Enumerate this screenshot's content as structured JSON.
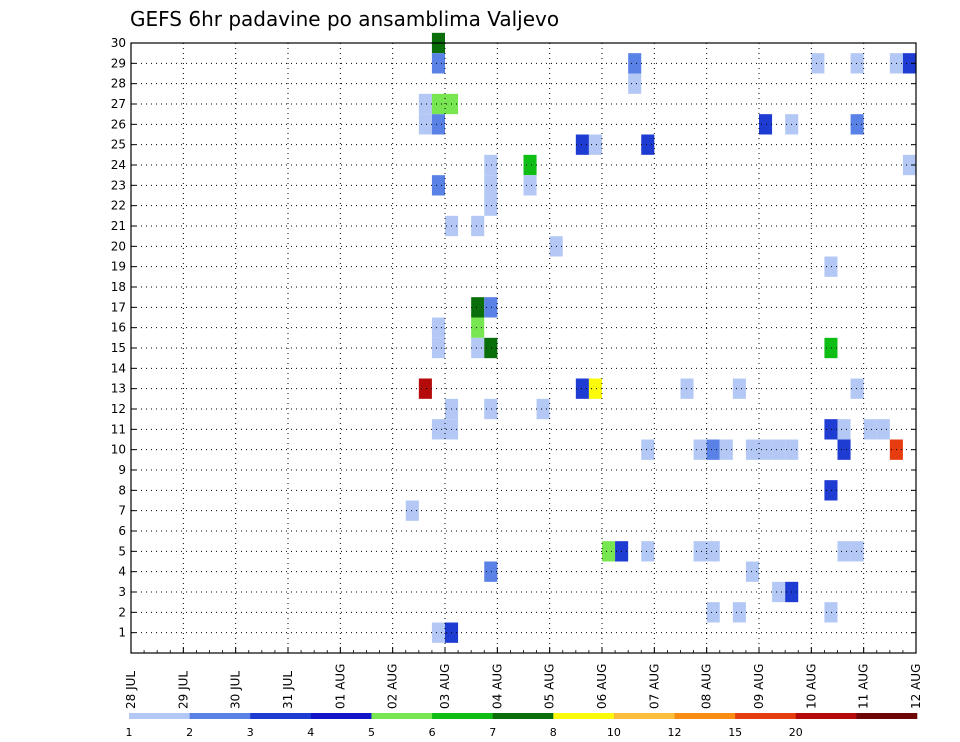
{
  "chart_data": {
    "type": "heatmap",
    "title": "GEFS 6hr padavine po ansamblima Valjevo",
    "xlabel": "",
    "ylabel": "",
    "x_ticks": [
      "28 JUL",
      "29 JUL",
      "30 JUL",
      "31 JUL",
      "01 AUG",
      "02 AUG",
      "03 AUG",
      "04 AUG",
      "05 AUG",
      "06 AUG",
      "07 AUG",
      "08 AUG",
      "09 AUG",
      "10 AUG",
      "11 AUG",
      "12 AUG"
    ],
    "x_range_days": [
      0,
      15
    ],
    "y_ticks": [
      1,
      2,
      3,
      4,
      5,
      6,
      7,
      8,
      9,
      10,
      11,
      12,
      13,
      14,
      15,
      16,
      17,
      18,
      19,
      20,
      21,
      22,
      23,
      24,
      25,
      26,
      27,
      28,
      29,
      30
    ],
    "y_range": [
      0,
      30
    ],
    "time_step_days": 0.25,
    "grid": true,
    "colorbar": {
      "labels": [
        "1",
        "2",
        "3",
        "4",
        "5",
        "6",
        "7",
        "8",
        "10",
        "12",
        "15",
        "20"
      ],
      "colors": [
        "#b4c8f5",
        "#5a82e6",
        "#1e3cd2",
        "#1414c8",
        "#78e650",
        "#0fbe14",
        "#0a6e0a",
        "#fafa0a",
        "#fabe3c",
        "#fa8c14",
        "#e63c0f",
        "#b40a0a",
        "#6e0505"
      ]
    },
    "cells": [
      {
        "member": 30,
        "t": 5.875,
        "level": 6
      },
      {
        "member": 29,
        "t": 5.875,
        "level": 1
      },
      {
        "member": 29,
        "t": 9.625,
        "level": 1
      },
      {
        "member": 29,
        "t": 13.125,
        "level": 0
      },
      {
        "member": 29,
        "t": 13.875,
        "level": 0
      },
      {
        "member": 29,
        "t": 14.625,
        "level": 0
      },
      {
        "member": 29,
        "t": 14.875,
        "level": 2
      },
      {
        "member": 28,
        "t": 9.625,
        "level": 0
      },
      {
        "member": 27,
        "t": 5.625,
        "level": 0
      },
      {
        "member": 27,
        "t": 5.875,
        "level": 4
      },
      {
        "member": 27,
        "t": 6.125,
        "level": 4
      },
      {
        "member": 26,
        "t": 5.625,
        "level": 0
      },
      {
        "member": 26,
        "t": 5.875,
        "level": 1
      },
      {
        "member": 26,
        "t": 12.125,
        "level": 2
      },
      {
        "member": 26,
        "t": 12.625,
        "level": 0
      },
      {
        "member": 26,
        "t": 13.875,
        "level": 1
      },
      {
        "member": 25,
        "t": 8.625,
        "level": 2
      },
      {
        "member": 25,
        "t": 8.875,
        "level": 0
      },
      {
        "member": 25,
        "t": 9.875,
        "level": 2
      },
      {
        "member": 24,
        "t": 6.875,
        "level": 0
      },
      {
        "member": 24,
        "t": 7.625,
        "level": 5
      },
      {
        "member": 24,
        "t": 14.875,
        "level": 0
      },
      {
        "member": 23,
        "t": 5.875,
        "level": 1
      },
      {
        "member": 23,
        "t": 6.875,
        "level": 0
      },
      {
        "member": 23,
        "t": 7.625,
        "level": 0
      },
      {
        "member": 22,
        "t": 6.875,
        "level": 0
      },
      {
        "member": 21,
        "t": 6.125,
        "level": 0
      },
      {
        "member": 21,
        "t": 6.625,
        "level": 0
      },
      {
        "member": 20,
        "t": 8.125,
        "level": 0
      },
      {
        "member": 19,
        "t": 13.375,
        "level": 0
      },
      {
        "member": 17,
        "t": 6.625,
        "level": 6
      },
      {
        "member": 17,
        "t": 6.875,
        "level": 1
      },
      {
        "member": 16,
        "t": 6.625,
        "level": 4
      },
      {
        "member": 16,
        "t": 5.875,
        "level": 0
      },
      {
        "member": 15,
        "t": 5.875,
        "level": 0
      },
      {
        "member": 15,
        "t": 6.625,
        "level": 0
      },
      {
        "member": 15,
        "t": 6.875,
        "level": 6
      },
      {
        "member": 15,
        "t": 13.375,
        "level": 5
      },
      {
        "member": 13,
        "t": 5.625,
        "level": 11
      },
      {
        "member": 13,
        "t": 8.625,
        "level": 2
      },
      {
        "member": 13,
        "t": 8.875,
        "level": 7
      },
      {
        "member": 13,
        "t": 10.625,
        "level": 0
      },
      {
        "member": 13,
        "t": 11.625,
        "level": 0
      },
      {
        "member": 13,
        "t": 13.875,
        "level": 0
      },
      {
        "member": 12,
        "t": 6.125,
        "level": 0
      },
      {
        "member": 12,
        "t": 6.875,
        "level": 0
      },
      {
        "member": 12,
        "t": 7.875,
        "level": 0
      },
      {
        "member": 11,
        "t": 5.875,
        "level": 0
      },
      {
        "member": 11,
        "t": 6.125,
        "level": 0
      },
      {
        "member": 11,
        "t": 13.375,
        "level": 2
      },
      {
        "member": 11,
        "t": 13.625,
        "level": 0
      },
      {
        "member": 11,
        "t": 14.125,
        "level": 0
      },
      {
        "member": 11,
        "t": 14.375,
        "level": 0
      },
      {
        "member": 10,
        "t": 9.875,
        "level": 0
      },
      {
        "member": 10,
        "t": 10.875,
        "level": 0
      },
      {
        "member": 10,
        "t": 11.125,
        "level": 1
      },
      {
        "member": 10,
        "t": 11.375,
        "level": 0
      },
      {
        "member": 10,
        "t": 11.875,
        "level": 0
      },
      {
        "member": 10,
        "t": 12.125,
        "level": 0
      },
      {
        "member": 10,
        "t": 12.375,
        "level": 0
      },
      {
        "member": 10,
        "t": 12.625,
        "level": 0
      },
      {
        "member": 10,
        "t": 13.625,
        "level": 2
      },
      {
        "member": 10,
        "t": 14.625,
        "level": 10
      },
      {
        "member": 8,
        "t": 13.375,
        "level": 2
      },
      {
        "member": 7,
        "t": 5.375,
        "level": 0
      },
      {
        "member": 5,
        "t": 9.125,
        "level": 4
      },
      {
        "member": 5,
        "t": 9.375,
        "level": 2
      },
      {
        "member": 5,
        "t": 9.875,
        "level": 0
      },
      {
        "member": 5,
        "t": 10.875,
        "level": 0
      },
      {
        "member": 5,
        "t": 11.125,
        "level": 0
      },
      {
        "member": 5,
        "t": 13.625,
        "level": 0
      },
      {
        "member": 5,
        "t": 13.875,
        "level": 0
      },
      {
        "member": 4,
        "t": 6.875,
        "level": 1
      },
      {
        "member": 4,
        "t": 11.875,
        "level": 0
      },
      {
        "member": 3,
        "t": 12.375,
        "level": 0
      },
      {
        "member": 3,
        "t": 12.625,
        "level": 2
      },
      {
        "member": 2,
        "t": 11.125,
        "level": 0
      },
      {
        "member": 2,
        "t": 11.625,
        "level": 0
      },
      {
        "member": 2,
        "t": 13.375,
        "level": 0
      },
      {
        "member": 1,
        "t": 5.875,
        "level": 0
      },
      {
        "member": 1,
        "t": 6.125,
        "level": 2
      }
    ]
  }
}
